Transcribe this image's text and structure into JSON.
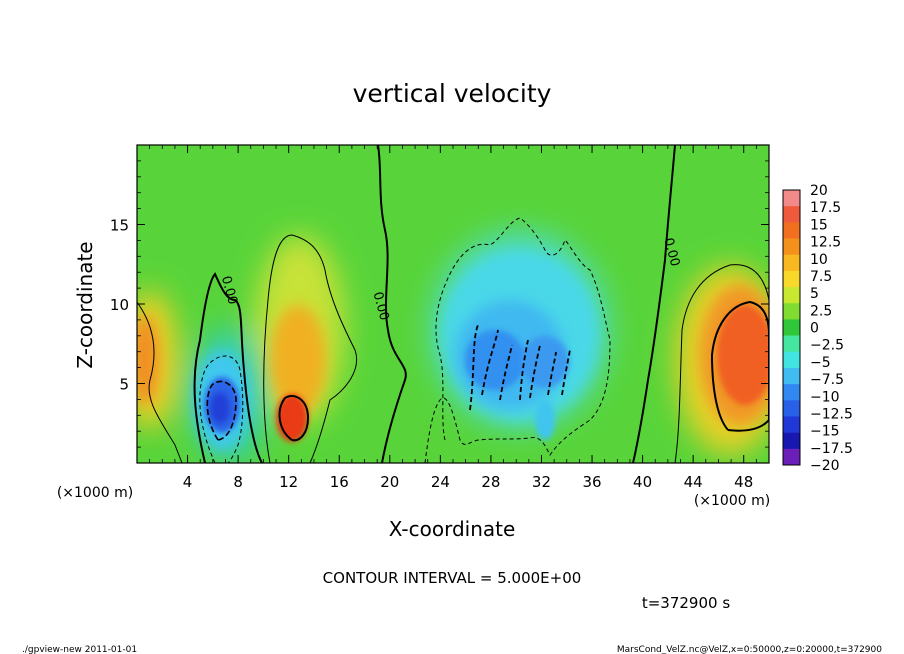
{
  "chart_data": {
    "type": "heatmap",
    "title": "vertical velocity",
    "xlabel": "X-coordinate",
    "ylabel": "Z-coordinate",
    "x_unit_label": "(×1000 m)",
    "y_unit_label": "(×1000 m)",
    "xlim": [
      0,
      50
    ],
    "ylim": [
      0,
      20
    ],
    "x_ticks": [
      4,
      8,
      12,
      16,
      20,
      24,
      28,
      32,
      36,
      40,
      44,
      48
    ],
    "y_ticks": [
      5,
      10,
      15
    ],
    "grid": false,
    "contour_interval_text": "CONTOUR INTERVAL = 5.000E+00",
    "contour_labels": [
      {
        "text": "0.00",
        "x": 7,
        "y": 10.8
      },
      {
        "text": "0.00",
        "x": 19,
        "y": 9.8
      },
      {
        "text": "0.00",
        "x": 42,
        "y": 13.2
      }
    ],
    "colorbar": {
      "labels": [
        "20",
        "17.5",
        "15",
        "12.5",
        "10",
        "7.5",
        "5",
        "2.5",
        "0",
        "−2.5",
        "−5",
        "−7.5",
        "−10",
        "−12.5",
        "−15",
        "−17.5",
        "−20"
      ],
      "colors": [
        "#f28a8a",
        "#f05a3c",
        "#f07020",
        "#f4901c",
        "#f8b820",
        "#f8d828",
        "#c8e830",
        "#80dc30",
        "#30c83a",
        "#44e6a0",
        "#40e4e0",
        "#40bcf0",
        "#3088f0",
        "#2860e8",
        "#2038d8",
        "#1818b0",
        "#6a20b8"
      ]
    },
    "features": [
      {
        "kind": "downdraft",
        "x": 7,
        "z": 3.7,
        "peak": -15
      },
      {
        "kind": "updraft",
        "x": 12.3,
        "z": 3,
        "peak": 15
      },
      {
        "kind": "downdraft",
        "x": 30,
        "z": 7,
        "peak": -12.5
      },
      {
        "kind": "updraft",
        "x": 47.5,
        "z": 6,
        "peak": 12.5
      },
      {
        "kind": "updraft",
        "x": 0.3,
        "z": 6.5,
        "peak": 10
      }
    ]
  },
  "time_label": "t=372900 s",
  "footer": {
    "left": "./gpview-new   2011-01-01",
    "right": "MarsCond_VelZ.nc@VelZ,x=0:50000,z=0:20000,t=372900"
  }
}
